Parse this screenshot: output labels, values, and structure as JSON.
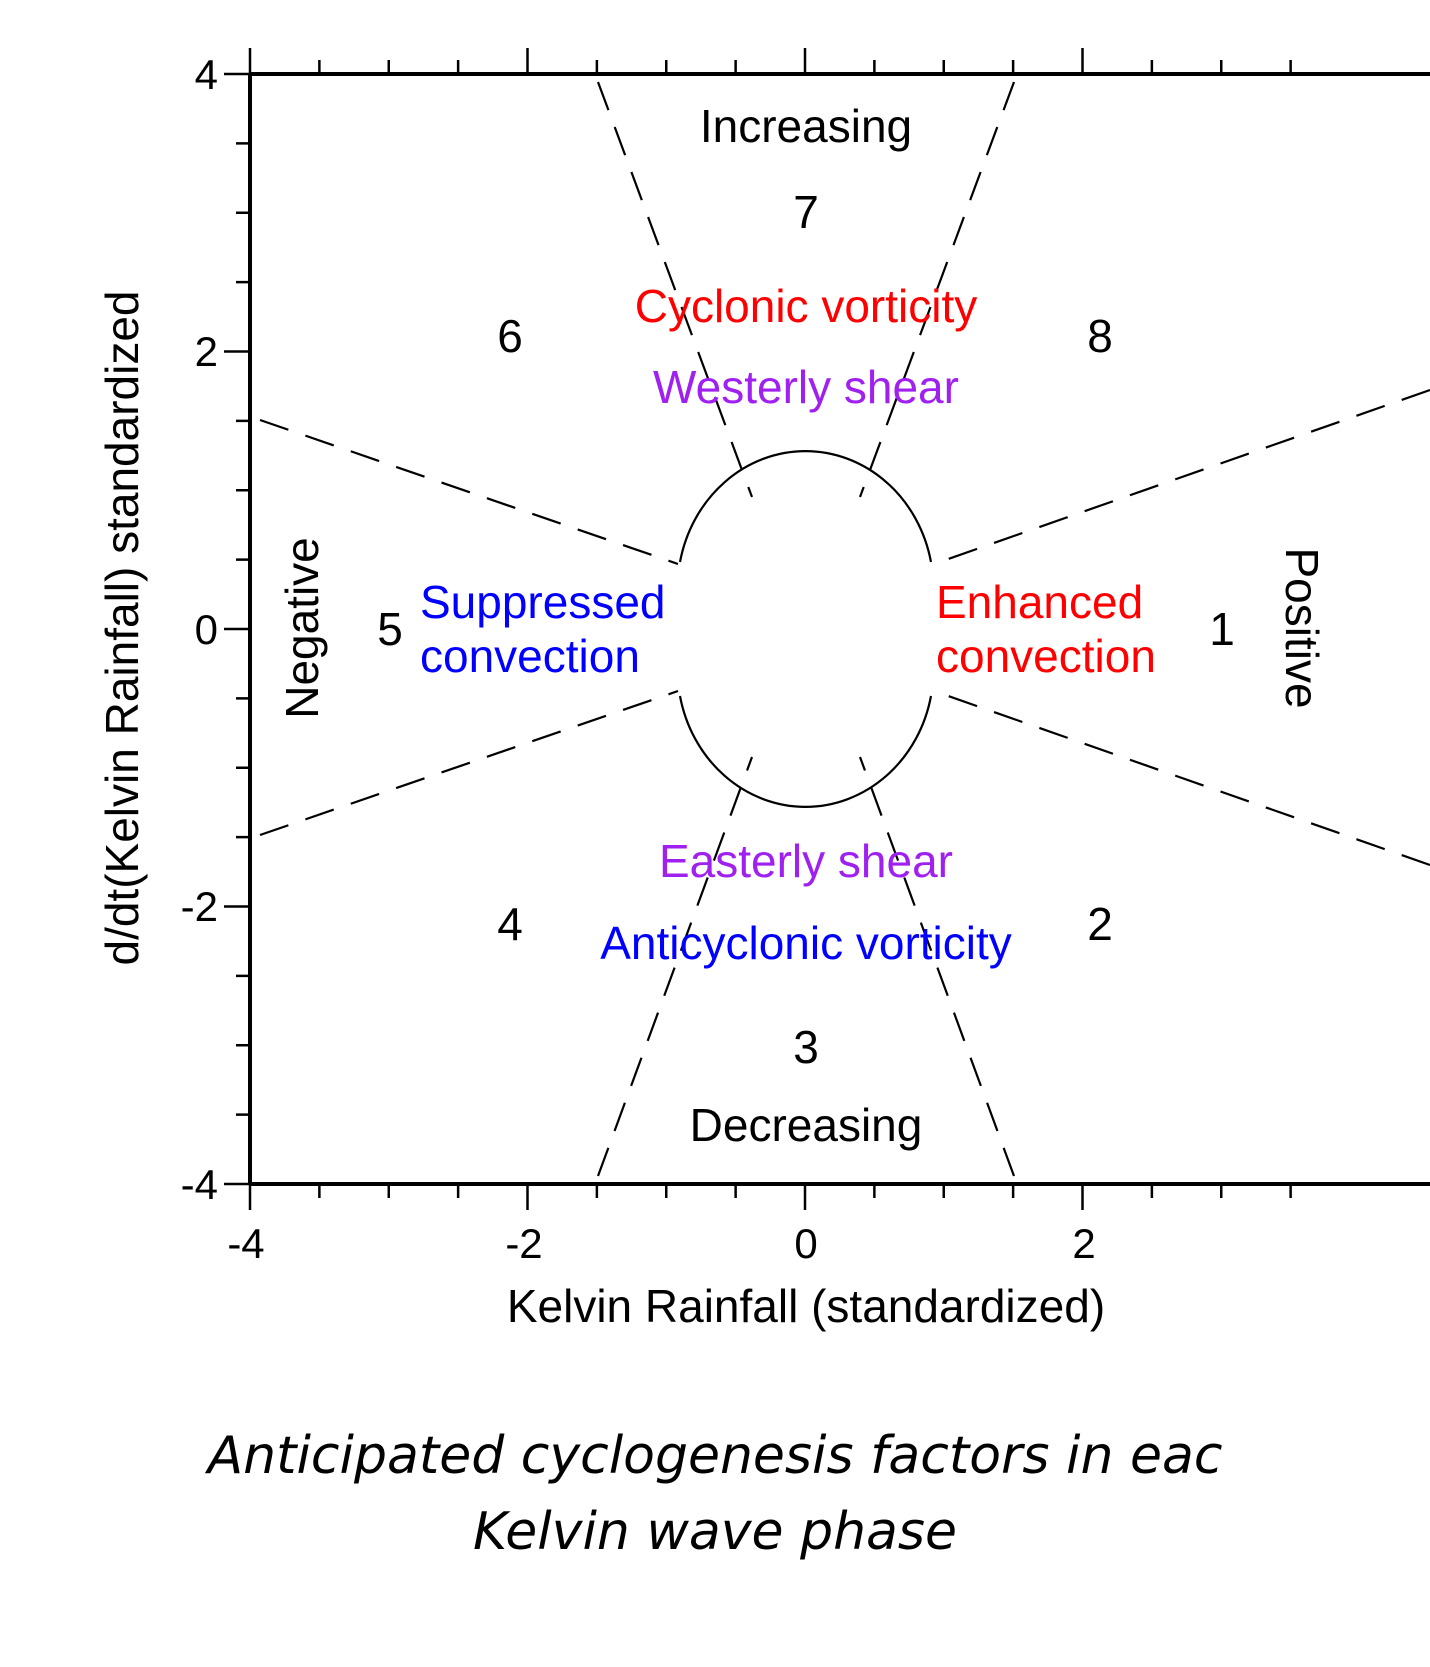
{
  "colors": {
    "black": "#000000",
    "red": "#ff0000",
    "purple": "#a020f0",
    "blue": "#0000ff"
  },
  "axes": {
    "xlabel": "Kelvin Rainfall (standardized)",
    "ylabel": "d/dt(Kelvin Rainfall) standardized",
    "xlim": [
      -4,
      4
    ],
    "ylim": [
      -4,
      4
    ],
    "x_tick_labels": [
      "-4",
      "-2",
      "0",
      "2"
    ],
    "y_tick_labels": [
      "4",
      "2",
      "0",
      "-2",
      "-4"
    ]
  },
  "phases": [
    "1",
    "2",
    "3",
    "4",
    "5",
    "6",
    "7",
    "8"
  ],
  "regions": {
    "increasing": "Increasing",
    "decreasing": "Decreasing",
    "negative": "Negative",
    "positive": "Positive"
  },
  "factors": {
    "cyclonic_vorticity": "Cyclonic vorticity",
    "westerly_shear": "Westerly shear",
    "easterly_shear": "Easterly shear",
    "anticyclonic_vorticity": "Anticyclonic vorticity",
    "suppressed_line1": "Suppressed",
    "suppressed_line2": "convection",
    "enhanced_line1": "Enhanced",
    "enhanced_line2": "convection"
  },
  "caption": {
    "line1": "Anticipated cyclogenesis factors in eac",
    "line2": "Kelvin wave phase"
  }
}
